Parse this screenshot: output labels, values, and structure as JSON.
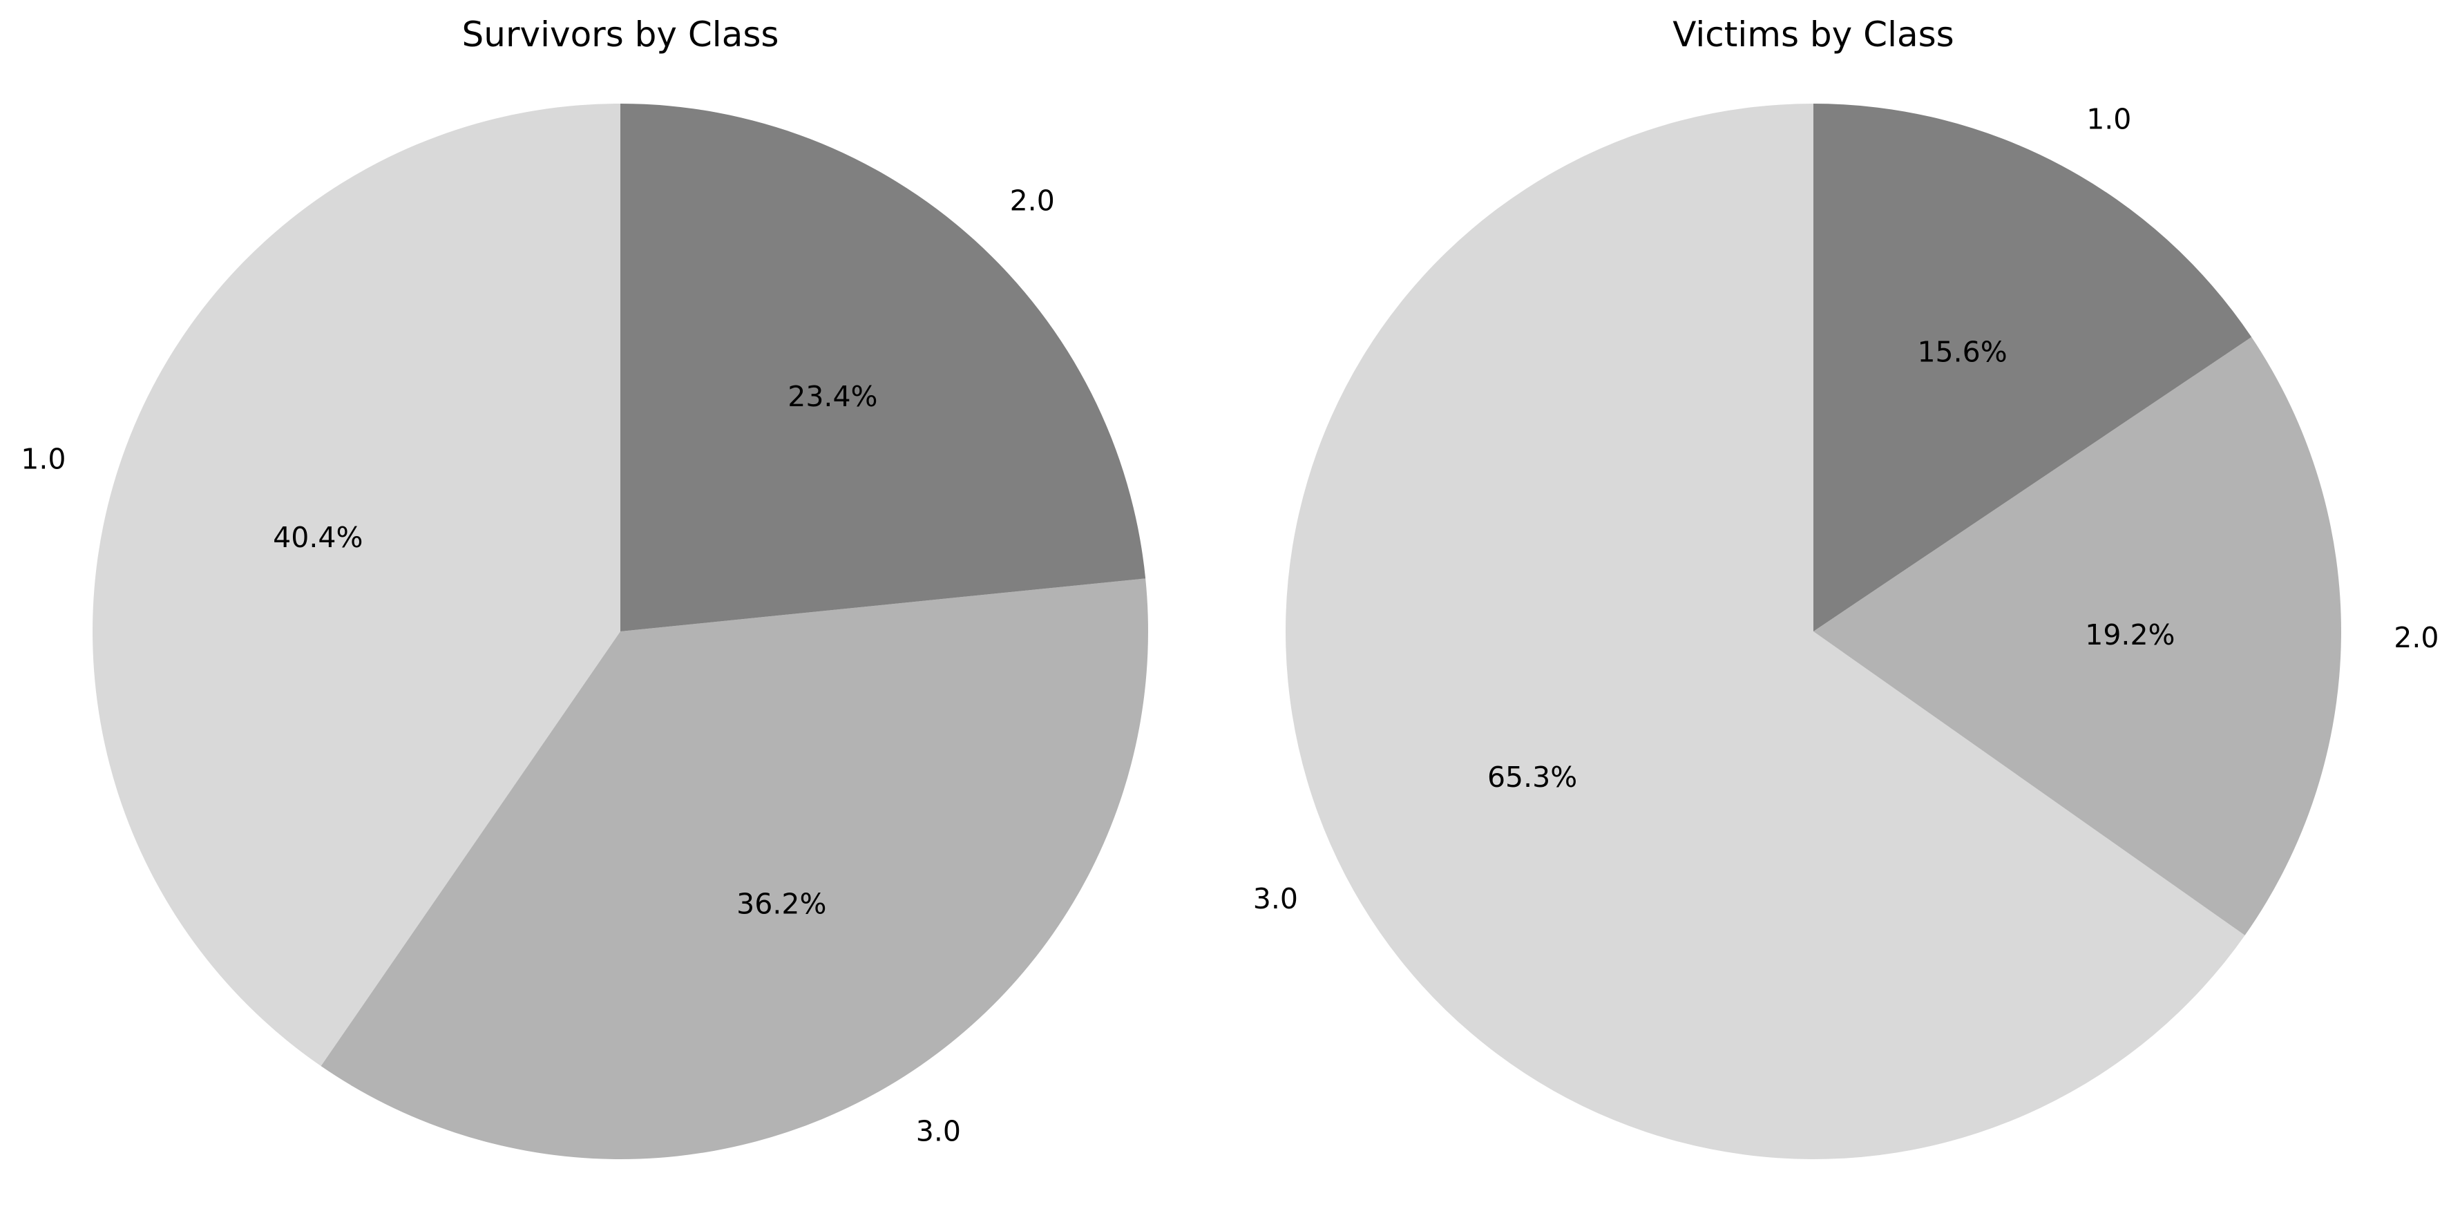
{
  "chart_data": [
    {
      "type": "pie",
      "title": "Survivors by Class",
      "start_angle": 90,
      "direction": "counterclockwise",
      "slices": [
        {
          "label": "1.0",
          "percent": "40.4%",
          "value": 40.4,
          "color": "#d9d9d9"
        },
        {
          "label": "3.0",
          "percent": "36.2%",
          "value": 36.2,
          "color": "#b3b3b3"
        },
        {
          "label": "2.0",
          "percent": "23.4%",
          "value": 23.4,
          "color": "#808080"
        }
      ]
    },
    {
      "type": "pie",
      "title": "Victims by Class",
      "start_angle": 90,
      "direction": "counterclockwise",
      "slices": [
        {
          "label": "3.0",
          "percent": "65.3%",
          "value": 65.3,
          "color": "#d9d9d9"
        },
        {
          "label": "2.0",
          "percent": "19.2%",
          "value": 19.2,
          "color": "#b3b3b3"
        },
        {
          "label": "1.0",
          "percent": "15.6%",
          "value": 15.6,
          "color": "#808080"
        }
      ]
    }
  ]
}
